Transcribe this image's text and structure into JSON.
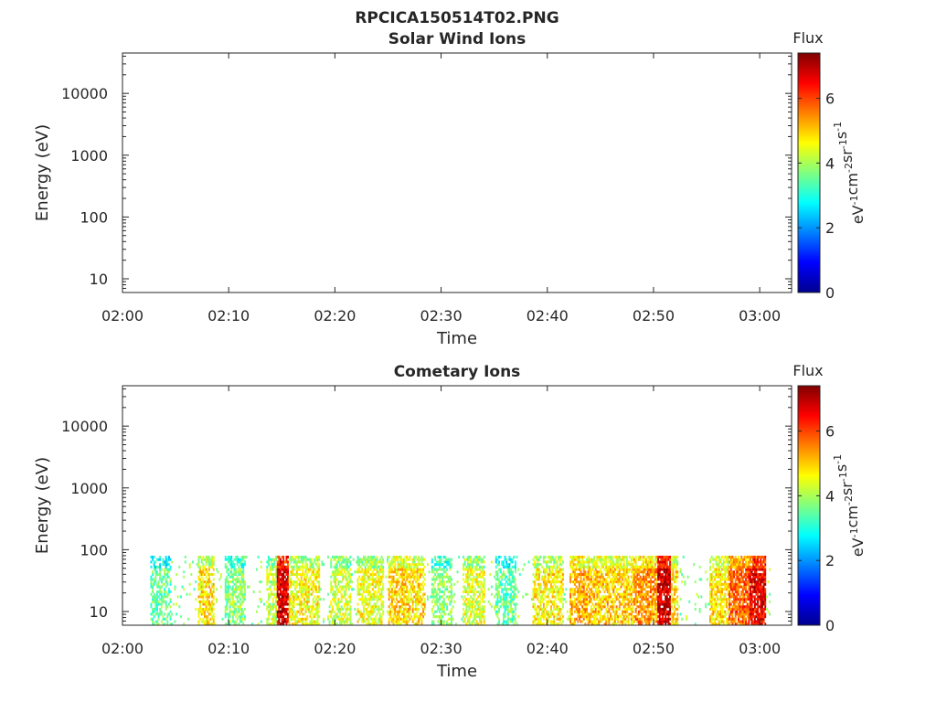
{
  "figure": {
    "title": "RPCICA150514T02.PNG"
  },
  "colorbar": {
    "title": "Flux",
    "unit_base": [
      "eV",
      "cm",
      "sr",
      "s"
    ],
    "unit_exp": [
      "-1",
      "-2",
      "-1",
      "-1"
    ],
    "range": [
      0,
      7.4
    ],
    "ticks": [
      0,
      2,
      4,
      6
    ],
    "colormap": "jet",
    "colors": [
      "#00008f",
      "#0000ff",
      "#0080ff",
      "#00ffff",
      "#80ff80",
      "#ffff00",
      "#ff8000",
      "#ff0000",
      "#800000"
    ]
  },
  "chart_data": [
    {
      "type": "heatmap",
      "title": "Solar Wind Ions",
      "xlabel": "Time",
      "ylabel": "Energy (eV)",
      "x_ticks": [
        "02:00",
        "02:10",
        "02:20",
        "02:30",
        "02:40",
        "02:50",
        "03:00"
      ],
      "xlim_minutes": [
        0,
        63
      ],
      "y_scale": "log",
      "ylim": [
        6,
        45000
      ],
      "y_ticks": [
        10,
        100,
        1000,
        10000
      ],
      "y_tick_labels": [
        "10",
        "100",
        "1000",
        "10000"
      ],
      "events": []
    },
    {
      "type": "heatmap",
      "title": "Cometary Ions",
      "xlabel": "Time",
      "ylabel": "Energy (eV)",
      "x_ticks": [
        "02:00",
        "02:10",
        "02:20",
        "02:30",
        "02:40",
        "02:50",
        "03:00"
      ],
      "xlim_minutes": [
        0,
        63
      ],
      "y_scale": "log",
      "ylim": [
        6,
        45000
      ],
      "y_ticks": [
        10,
        100,
        1000,
        10000
      ],
      "y_tick_labels": [
        "10",
        "100",
        "1000",
        "10000"
      ],
      "energy_max_eV": 80,
      "background_flux": 3.8,
      "events": [
        {
          "t0": 2.5,
          "t1": 4.5,
          "flux": 3.5
        },
        {
          "t0": 7.0,
          "t1": 8.5,
          "flux": 4.8
        },
        {
          "t0": 9.5,
          "t1": 11.5,
          "flux": 3.8
        },
        {
          "t0": 13.5,
          "t1": 14.4,
          "flux": 4.2
        },
        {
          "t0": 14.4,
          "t1": 15.6,
          "flux": 6.8
        },
        {
          "t0": 15.6,
          "t1": 18.5,
          "flux": 4.6
        },
        {
          "t0": 19.5,
          "t1": 21.5,
          "flux": 4.3
        },
        {
          "t0": 22.0,
          "t1": 24.5,
          "flux": 4.5
        },
        {
          "t0": 25.0,
          "t1": 28.5,
          "flux": 4.9
        },
        {
          "t0": 29.0,
          "t1": 31.0,
          "flux": 3.8
        },
        {
          "t0": 32.0,
          "t1": 34.0,
          "flux": 4.4
        },
        {
          "t0": 35.0,
          "t1": 37.0,
          "flux": 3.5
        },
        {
          "t0": 38.5,
          "t1": 41.5,
          "flux": 4.7
        },
        {
          "t0": 42.0,
          "t1": 44.0,
          "flux": 5.2
        },
        {
          "t0": 44.0,
          "t1": 48.0,
          "flux": 5.0
        },
        {
          "t0": 48.0,
          "t1": 50.3,
          "flux": 5.4
        },
        {
          "t0": 50.3,
          "t1": 51.6,
          "flux": 6.8
        },
        {
          "t0": 51.6,
          "t1": 52.3,
          "flux": 4.8
        },
        {
          "t0": 55.2,
          "t1": 57.0,
          "flux": 4.8
        },
        {
          "t0": 57.0,
          "t1": 59.0,
          "flux": 5.8
        },
        {
          "t0": 59.0,
          "t1": 60.5,
          "flux": 6.6
        }
      ]
    }
  ]
}
